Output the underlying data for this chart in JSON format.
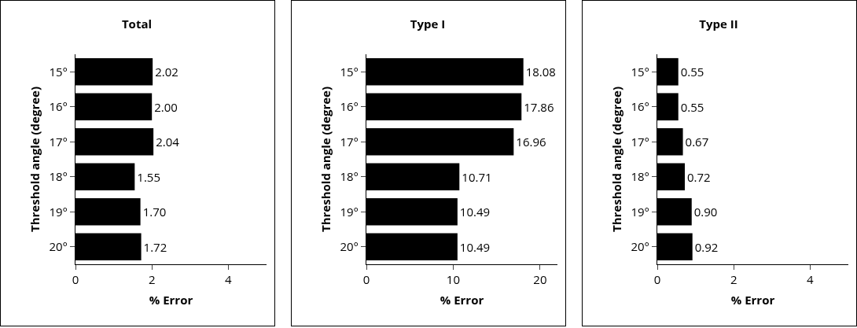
{
  "chart_data": [
    {
      "type": "bar",
      "orientation": "horizontal",
      "title": "Total",
      "xlabel": "% Error",
      "ylabel": "Threshold angle (degree)",
      "categories": [
        "15°",
        "16°",
        "17°",
        "18°",
        "19°",
        "20°"
      ],
      "values": [
        2.02,
        2.0,
        2.04,
        1.55,
        1.7,
        1.72
      ],
      "value_labels": [
        "2.02",
        "2.00",
        "2.04",
        "1.55",
        "1.70",
        "1.72"
      ],
      "color": "#000000",
      "xlim": [
        0,
        5
      ],
      "xticks": [
        0,
        2,
        4
      ]
    },
    {
      "type": "bar",
      "orientation": "horizontal",
      "title": "Type I",
      "xlabel": "% Error",
      "ylabel": "Threshold angle (degree)",
      "categories": [
        "15°",
        "16°",
        "17°",
        "18°",
        "19°",
        "20°"
      ],
      "values": [
        18.08,
        17.86,
        16.96,
        10.71,
        10.49,
        10.49
      ],
      "value_labels": [
        "18.08",
        "17.86",
        "16.96",
        "10.71",
        "10.49",
        "10.49"
      ],
      "color": "#000000",
      "xlim": [
        0,
        22
      ],
      "xticks": [
        0,
        10,
        20
      ]
    },
    {
      "type": "bar",
      "orientation": "horizontal",
      "title": "Type II",
      "xlabel": "% Error",
      "ylabel": "Threshold angle (degree)",
      "categories": [
        "15°",
        "16°",
        "17°",
        "18°",
        "19°",
        "20°"
      ],
      "values": [
        0.55,
        0.55,
        0.67,
        0.72,
        0.9,
        0.92
      ],
      "value_labels": [
        "0.55",
        "0.55",
        "0.67",
        "0.72",
        "0.90",
        "0.92"
      ],
      "color": "#000000",
      "xlim": [
        0,
        5
      ],
      "xticks": [
        0,
        2,
        4
      ]
    }
  ]
}
